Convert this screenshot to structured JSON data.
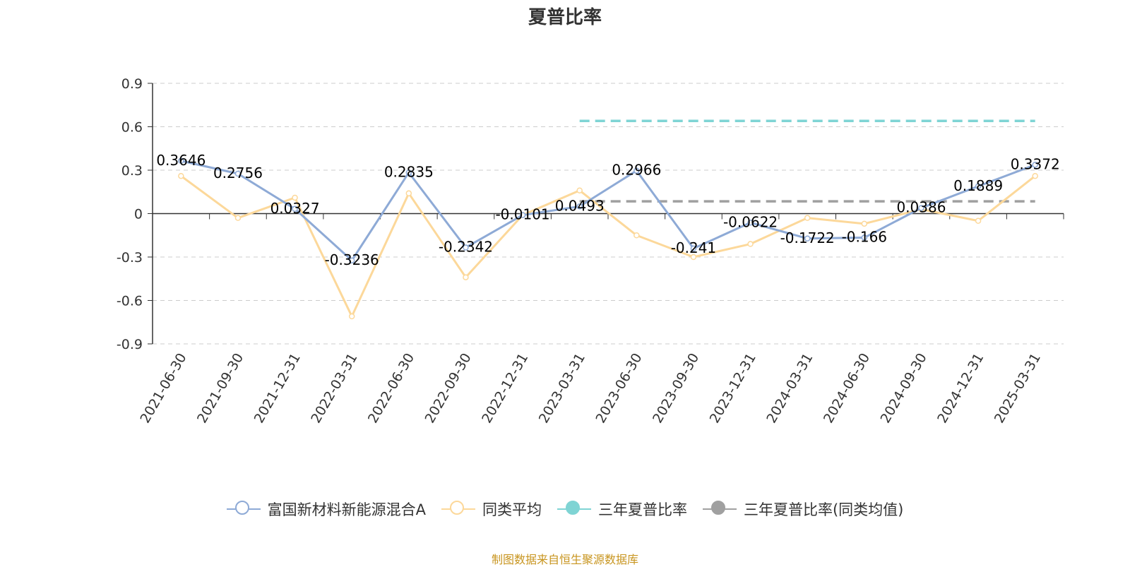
{
  "chart_data": {
    "type": "line",
    "title": "夏普比率",
    "categories": [
      "2021-06-30",
      "2021-09-30",
      "2021-12-31",
      "2022-03-31",
      "2022-06-30",
      "2022-09-30",
      "2022-12-31",
      "2023-03-31",
      "2023-06-30",
      "2023-09-30",
      "2023-12-31",
      "2024-03-31",
      "2024-06-30",
      "2024-09-30",
      "2024-12-31",
      "2025-03-31"
    ],
    "y_ticks": [
      "0.9",
      "0.6",
      "0.3",
      "0",
      "-0.3",
      "-0.6",
      "-0.9"
    ],
    "ylim": [
      -0.9,
      0.9
    ],
    "grid": true,
    "legend_position": "bottom",
    "series": [
      {
        "name": "富国新材料新能源混合A",
        "color": "#8eaad6",
        "values": [
          0.3646,
          0.2756,
          0.0327,
          -0.3236,
          0.2835,
          -0.2342,
          -0.0101,
          0.0493,
          0.2966,
          -0.241,
          -0.0622,
          -0.1722,
          -0.166,
          0.0386,
          0.1889,
          0.3372
        ],
        "labels": [
          "0.3646",
          "0.2756",
          "0.0327",
          "-0.3236",
          "0.2835",
          "-0.2342",
          "-0.0101",
          "0.0493",
          "0.2966",
          "-0.241",
          "-0.0622",
          "-0.1722",
          "-0.166",
          "0.0386",
          "0.1889",
          "0.3372"
        ]
      },
      {
        "name": "同类平均",
        "color": "#fcd89a",
        "values": [
          0.26,
          -0.03,
          0.11,
          -0.71,
          0.14,
          -0.44,
          -0.01,
          0.16,
          -0.15,
          -0.3,
          -0.21,
          -0.03,
          -0.07,
          0.03,
          -0.05,
          0.26
        ]
      }
    ],
    "reference_lines": [
      {
        "name": "三年夏普比率",
        "color": "#7fd4d4",
        "value": 0.64,
        "from": "2023-03-31",
        "to": "2025-03-31"
      },
      {
        "name": "三年夏普比率(同类均值)",
        "color": "#a0a0a0",
        "value": 0.085,
        "from": "2023-03-31",
        "to": "2025-03-31"
      }
    ]
  },
  "legend": [
    {
      "label": "富国新材料新能源混合A",
      "color": "#8eaad6",
      "style": "hollow"
    },
    {
      "label": "同类平均",
      "color": "#fcd89a",
      "style": "hollow"
    },
    {
      "label": "三年夏普比率",
      "color": "#7fd4d4",
      "style": "filled"
    },
    {
      "label": "三年夏普比率(同类均值)",
      "color": "#a0a0a0",
      "style": "filled"
    }
  ],
  "source_note": "制图数据来自恒生聚源数据库"
}
